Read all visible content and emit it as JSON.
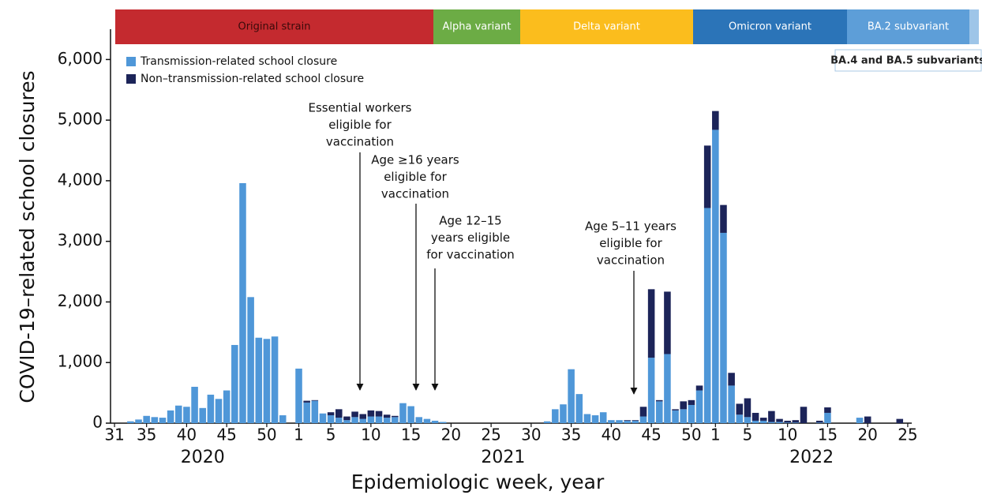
{
  "chart_data": {
    "type": "stacked-bar",
    "x_label": "Epidemiologic week, year",
    "y_label": "COVID-19–related school closures",
    "years": [
      "2020",
      "2021",
      "2022"
    ],
    "categories": [
      "31",
      null,
      null,
      null,
      "35",
      null,
      null,
      null,
      null,
      "40",
      null,
      null,
      null,
      null,
      "45",
      null,
      null,
      null,
      null,
      "50",
      null,
      null,
      null,
      "1",
      null,
      null,
      null,
      "5",
      null,
      null,
      null,
      null,
      "10",
      null,
      null,
      null,
      null,
      "15",
      null,
      null,
      null,
      null,
      "20",
      null,
      null,
      null,
      null,
      "25",
      null,
      null,
      null,
      null,
      "30",
      null,
      null,
      null,
      null,
      "35",
      null,
      null,
      null,
      null,
      "40",
      null,
      null,
      null,
      null,
      "45",
      null,
      null,
      null,
      null,
      "50",
      null,
      null,
      "1",
      null,
      null,
      null,
      "5",
      null,
      null,
      null,
      null,
      "10",
      null,
      null,
      null,
      null,
      "15",
      null,
      null,
      null,
      null,
      "20",
      null,
      null,
      null,
      null,
      "25"
    ],
    "series": [
      {
        "name": "Transmission-related school closure",
        "color": "#4f97d8",
        "values": [
          0,
          0,
          30,
          60,
          120,
          100,
          90,
          210,
          290,
          270,
          600,
          250,
          470,
          400,
          540,
          1290,
          3960,
          2080,
          1410,
          1390,
          1430,
          130,
          0,
          900,
          340,
          370,
          160,
          130,
          90,
          50,
          100,
          70,
          110,
          110,
          90,
          100,
          330,
          280,
          100,
          70,
          40,
          20,
          0,
          0,
          0,
          0,
          0,
          0,
          0,
          0,
          0,
          0,
          0,
          0,
          30,
          230,
          310,
          890,
          480,
          150,
          130,
          180,
          50,
          50,
          40,
          40,
          110,
          1080,
          360,
          1140,
          210,
          230,
          300,
          540,
          3550,
          4840,
          3140,
          620,
          140,
          100,
          40,
          40,
          20,
          20,
          10,
          10,
          0,
          0,
          10,
          170,
          0,
          0,
          0,
          90,
          0,
          0,
          0,
          0,
          0,
          0
        ]
      },
      {
        "name": "Non–transmission-related school closure",
        "color": "#1c2459",
        "values": [
          0,
          0,
          0,
          0,
          0,
          0,
          0,
          0,
          0,
          0,
          0,
          0,
          0,
          0,
          0,
          0,
          0,
          0,
          0,
          0,
          0,
          0,
          0,
          0,
          30,
          10,
          0,
          50,
          140,
          60,
          90,
          80,
          100,
          90,
          50,
          20,
          0,
          0,
          0,
          0,
          0,
          0,
          0,
          0,
          0,
          0,
          0,
          0,
          0,
          0,
          0,
          0,
          0,
          0,
          0,
          0,
          0,
          0,
          0,
          0,
          0,
          0,
          0,
          0,
          10,
          10,
          160,
          1130,
          20,
          1030,
          20,
          130,
          80,
          80,
          1030,
          310,
          460,
          210,
          180,
          310,
          130,
          50,
          180,
          50,
          30,
          40,
          270,
          0,
          30,
          90,
          0,
          0,
          0,
          0,
          110,
          0,
          0,
          0,
          70,
          0
        ]
      }
    ],
    "ylim": [
      0,
      6500
    ],
    "yticks": [
      0,
      {
        "value": 1000,
        "label": "1,000"
      },
      {
        "value": 2000,
        "label": "2,000"
      },
      {
        "value": 3000,
        "label": "3,000"
      },
      {
        "value": 4000,
        "label": "4,000"
      },
      {
        "value": 5000,
        "label": "5,000"
      },
      {
        "value": 6000,
        "label": "6,000"
      }
    ],
    "legend": "top-left",
    "periods": [
      {
        "label": "Original strain",
        "color": "#c42a2f"
      },
      {
        "label": "Alpha variant",
        "color": "#6cac45"
      },
      {
        "label": "Delta variant",
        "color": "#fbbd1d"
      },
      {
        "label": "Omicron variant",
        "color": "#2b74b8"
      },
      {
        "label": "BA.2 subvariant",
        "color": "#5d9ed8"
      },
      {
        "label": "BA.4 and BA.5 subvariants",
        "color": "#9ec5e8"
      }
    ],
    "annotations": [
      {
        "lines": [
          "Essential workers",
          "eligible for",
          "vaccination"
        ]
      },
      {
        "lines": [
          "Age ≥16 years",
          "eligible for",
          "vaccination"
        ]
      },
      {
        "lines": [
          "Age 12–15",
          "years eligible",
          "for vaccination"
        ]
      },
      {
        "lines": [
          "Age 5–11 years",
          "eligible for",
          "vaccination"
        ]
      }
    ]
  }
}
